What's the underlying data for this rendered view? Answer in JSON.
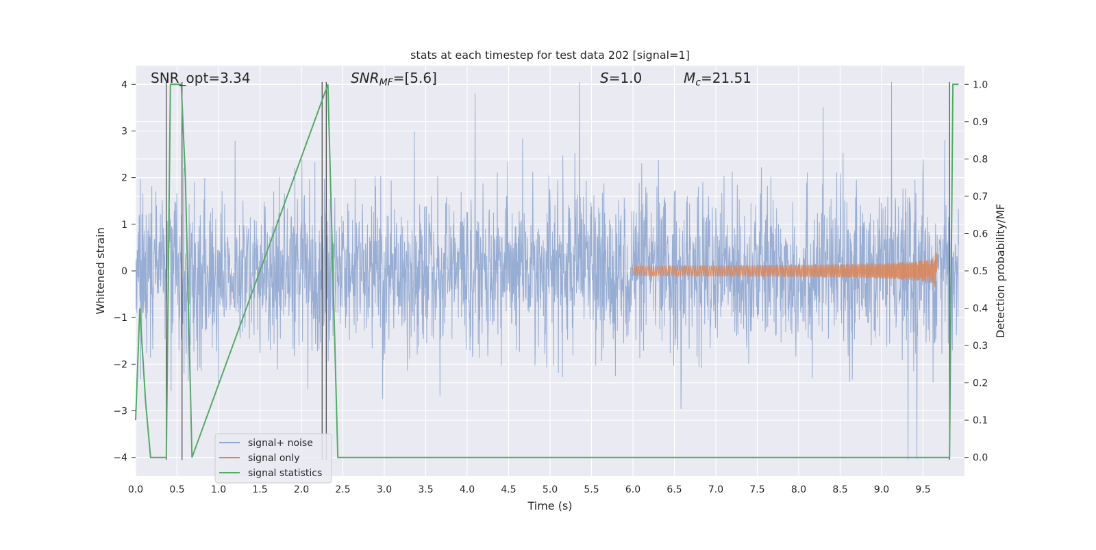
{
  "chart_data": {
    "type": "line",
    "title": "stats at each timestep for test data 202 [signal=1]",
    "xlabel": "Time (s)",
    "ylabel_left": "Whitened strain",
    "ylabel_right": "Detection probability/MF",
    "xlim": [
      0.0,
      10.0
    ],
    "ylim_left": [
      -4.4,
      4.4
    ],
    "ylim_right": [
      -0.05,
      1.05
    ],
    "x_ticks": [
      "0.0",
      "0.5",
      "1.0",
      "1.5",
      "2.0",
      "2.5",
      "3.0",
      "3.5",
      "4.0",
      "4.5",
      "5.0",
      "5.5",
      "6.0",
      "6.5",
      "7.0",
      "7.5",
      "8.0",
      "8.5",
      "9.0",
      "9.5"
    ],
    "y_left_ticks": [
      "4",
      "3",
      "2",
      "1",
      "0",
      "−1",
      "−2",
      "−3",
      "−4"
    ],
    "y_right_ticks": [
      "1.0",
      "0.9",
      "0.8",
      "0.7",
      "0.6",
      "0.5",
      "0.4",
      "0.3",
      "0.2",
      "0.1",
      "0.0"
    ],
    "grid": true,
    "legend_position": "lower-left",
    "annotations": {
      "snr_opt": "SNR_opt=3.34",
      "snr_mf_prefix": "SNR",
      "snr_mf_sub": "MF",
      "snr_mf_suffix": "=[5.6]",
      "s_symbol": "S",
      "s_value": "=1.0",
      "mc_symbol": "M",
      "mc_sub": "c",
      "mc_value": "=21.51"
    },
    "series": [
      {
        "name": "signal+ noise",
        "color": "#8fa6cf",
        "description": "noise-dominated whitened strain, envelope approx ±1.6, spikes up to ±4"
      },
      {
        "name": "signal only",
        "color": "#dd8452",
        "chirp_start": 6.0,
        "chirp_end": 9.67,
        "peak_amplitude": 0.6
      },
      {
        "name": "signal statistics",
        "color": "#55a868",
        "x": [
          0.0,
          0.05,
          0.12,
          0.18,
          0.37,
          0.42,
          0.55,
          0.6,
          0.68,
          2.32,
          2.44,
          9.82,
          9.86,
          9.93
        ],
        "y": [
          0.1,
          0.4,
          0.15,
          0.0,
          0.0,
          1.0,
          1.0,
          0.75,
          0.0,
          1.0,
          0.0,
          0.0,
          1.0,
          1.0
        ]
      }
    ],
    "vertical_lines": [
      0.37,
      0.56,
      2.25,
      2.3,
      9.82
    ]
  },
  "colors": {
    "axes_bg": "#eaeaf2",
    "grid": "#ffffff",
    "vline": "#444444"
  }
}
